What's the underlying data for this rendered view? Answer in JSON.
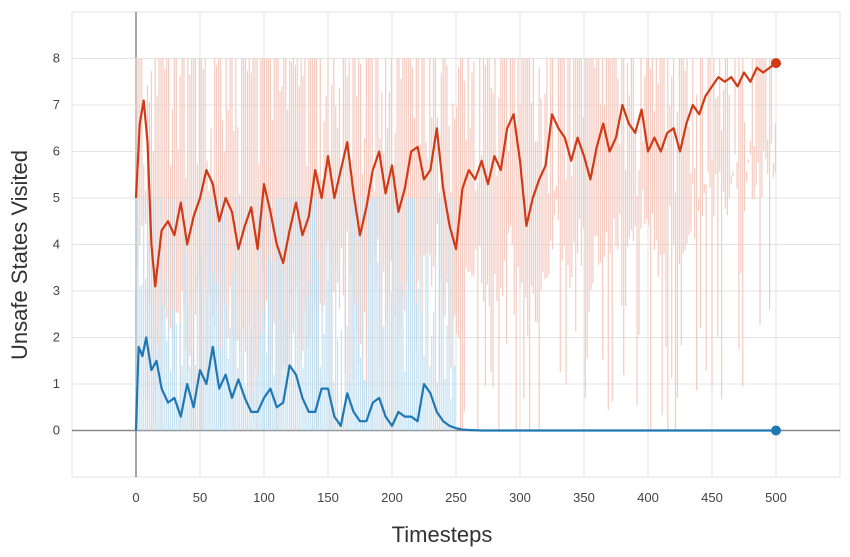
{
  "chart_data": {
    "type": "line",
    "title": "",
    "xlabel": "Timesteps",
    "ylabel": "Unsafe  States Visited",
    "xlim": [
      -50,
      550
    ],
    "ylim": [
      -1,
      9
    ],
    "x_ticks": [
      0,
      50,
      100,
      150,
      200,
      250,
      300,
      350,
      400,
      450,
      500
    ],
    "y_ticks": [
      0,
      1,
      2,
      3,
      4,
      5,
      6,
      7,
      8
    ],
    "grid": true,
    "legend": "none",
    "colors": {
      "series_a": "#d13a16",
      "series_a_raw": "#f3c6bb",
      "series_b": "#1f77b4",
      "series_b_raw": "#bcdcef",
      "grid": "#e3e3e3",
      "zero_axis": "#888888"
    },
    "series": [
      {
        "color_key": "series_a",
        "x": [
          0,
          3,
          6,
          9,
          12,
          15,
          20,
          25,
          30,
          35,
          40,
          45,
          50,
          55,
          60,
          65,
          70,
          75,
          80,
          85,
          90,
          95,
          100,
          105,
          110,
          115,
          120,
          125,
          130,
          135,
          140,
          145,
          150,
          155,
          160,
          165,
          170,
          175,
          180,
          185,
          190,
          195,
          200,
          205,
          210,
          215,
          220,
          225,
          230,
          235,
          240,
          245,
          250,
          255,
          260,
          265,
          270,
          275,
          280,
          285,
          290,
          295,
          300,
          305,
          310,
          315,
          320,
          325,
          330,
          335,
          340,
          345,
          350,
          355,
          360,
          365,
          370,
          375,
          380,
          385,
          390,
          395,
          400,
          405,
          410,
          415,
          420,
          425,
          430,
          435,
          440,
          445,
          450,
          455,
          460,
          465,
          470,
          475,
          480,
          485,
          490,
          495,
          500
        ],
        "values": [
          5.0,
          6.6,
          7.1,
          6.2,
          4.0,
          3.1,
          4.3,
          4.5,
          4.2,
          4.9,
          4.0,
          4.6,
          5.0,
          5.6,
          5.3,
          4.5,
          5.0,
          4.7,
          3.9,
          4.4,
          4.8,
          3.9,
          5.3,
          4.7,
          4.0,
          3.6,
          4.3,
          4.9,
          4.2,
          4.6,
          5.6,
          5.0,
          5.9,
          5.0,
          5.6,
          6.2,
          5.1,
          4.2,
          4.8,
          5.6,
          6.0,
          5.1,
          5.7,
          4.7,
          5.2,
          6.0,
          6.1,
          5.4,
          5.6,
          6.5,
          5.2,
          4.4,
          3.9,
          5.2,
          5.6,
          5.4,
          5.8,
          5.3,
          5.9,
          5.6,
          6.5,
          6.8,
          5.8,
          4.4,
          5.0,
          5.4,
          5.7,
          6.8,
          6.5,
          6.3,
          5.8,
          6.3,
          5.9,
          5.4,
          6.1,
          6.6,
          6.0,
          6.3,
          7.0,
          6.6,
          6.4,
          6.9,
          6.0,
          6.3,
          6.0,
          6.4,
          6.5,
          6.0,
          6.6,
          7.0,
          6.8,
          7.2,
          7.4,
          7.6,
          7.5,
          7.6,
          7.4,
          7.7,
          7.5,
          7.8,
          7.7,
          7.8,
          7.9
        ]
      },
      {
        "color_key": "series_b",
        "x": [
          0,
          2,
          5,
          8,
          12,
          16,
          20,
          25,
          30,
          35,
          40,
          45,
          50,
          55,
          60,
          65,
          70,
          75,
          80,
          85,
          90,
          95,
          100,
          105,
          110,
          115,
          120,
          125,
          130,
          135,
          140,
          145,
          150,
          155,
          160,
          165,
          170,
          175,
          180,
          185,
          190,
          195,
          200,
          205,
          210,
          215,
          220,
          225,
          230,
          235,
          240,
          245,
          250,
          255,
          260,
          270,
          280,
          300,
          350,
          400,
          450,
          500
        ],
        "values": [
          0.0,
          1.8,
          1.6,
          2.0,
          1.3,
          1.5,
          0.9,
          0.6,
          0.7,
          0.3,
          1.0,
          0.5,
          1.3,
          1.0,
          1.8,
          0.9,
          1.2,
          0.7,
          1.1,
          0.7,
          0.4,
          0.4,
          0.7,
          0.9,
          0.5,
          0.6,
          1.4,
          1.2,
          0.7,
          0.4,
          0.4,
          0.9,
          0.9,
          0.3,
          0.1,
          0.8,
          0.4,
          0.2,
          0.2,
          0.6,
          0.7,
          0.3,
          0.1,
          0.4,
          0.3,
          0.3,
          0.2,
          1.0,
          0.8,
          0.4,
          0.2,
          0.1,
          0.05,
          0.02,
          0.01,
          0.0,
          0.0,
          0.0,
          0.0,
          0.0,
          0.0,
          0.0
        ]
      }
    ]
  }
}
